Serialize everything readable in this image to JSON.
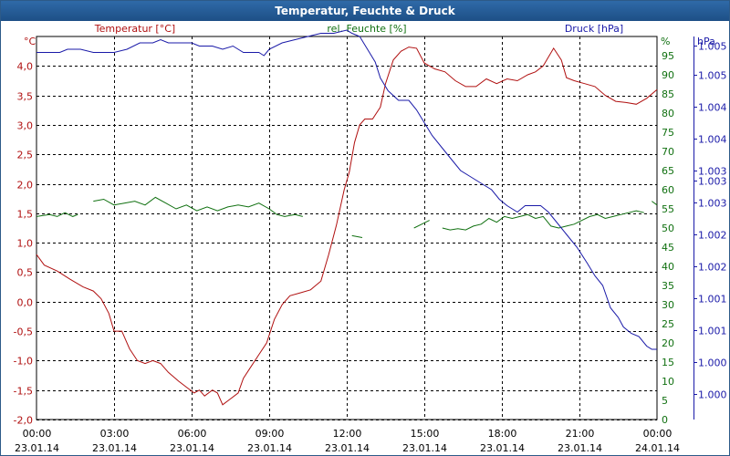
{
  "chart_data": {
    "type": "line",
    "title": "Temperatur, Feuchte & Druck",
    "x_tick_times": [
      "00:00",
      "03:00",
      "06:00",
      "09:00",
      "12:00",
      "15:00",
      "18:00",
      "21:00",
      "00:00"
    ],
    "x_tick_dates": [
      "23.01.14",
      "23.01.14",
      "23.01.14",
      "23.01.14",
      "23.01.14",
      "23.01.14",
      "23.01.14",
      "23.01.14",
      "24.01.14"
    ],
    "xlim": [
      0,
      24
    ],
    "axes": {
      "temperature": {
        "label": "Temperatur [°C]",
        "unit": "°C",
        "color": "#b01010",
        "ylim": [
          -2.0,
          4.5
        ],
        "ticks": [
          -2.0,
          -1.5,
          -1.0,
          -0.5,
          0.0,
          0.5,
          1.0,
          1.5,
          2.0,
          2.5,
          3.0,
          3.5,
          4.0
        ],
        "tick_labels": [
          "-2,0",
          "-1,5",
          "-1,0",
          "-0,5",
          "0,0",
          "0,5",
          "1,0",
          "1,5",
          "2,0",
          "2,5",
          "3,0",
          "3,5",
          "4,0"
        ]
      },
      "humidity": {
        "label": "rel. Feuchte [%]",
        "unit": "%",
        "color": "#107010",
        "ylim": [
          0,
          100
        ],
        "ticks": [
          0,
          5,
          10,
          15,
          20,
          25,
          30,
          35,
          40,
          45,
          50,
          55,
          60,
          65,
          70,
          75,
          80,
          85,
          90,
          95
        ],
        "tick_labels": [
          "0",
          "5",
          "10",
          "15",
          "20",
          "25",
          "30",
          "35",
          "40",
          "45",
          "50",
          "55",
          "60",
          "65",
          "70",
          "75",
          "80",
          "85",
          "90",
          "95"
        ]
      },
      "pressure": {
        "label": "Druck [hPa]",
        "unit": "hPa",
        "color": "#1a1aa8",
        "ylim": [
          999.6,
          1005.6
        ],
        "ticks": [
          1000,
          1000.5,
          1001,
          1001.5,
          1002,
          1002.5,
          1003,
          1003.5,
          1004,
          1004.5,
          1005
        ],
        "tick_labels": [
          "1.000",
          "1.000",
          "1.001",
          "1.001",
          "1.002",
          "1.002",
          "1.003",
          "1.003",
          "1.004",
          "1.004",
          "1.005"
        ],
        "extra_labels": [
          {
            "y": 1005.45,
            "text": "1.005"
          },
          {
            "y": 1003.35,
            "text": "1.003"
          }
        ]
      }
    },
    "series": [
      {
        "name": "Temperatur",
        "axis": "temperature",
        "color": "#b01010",
        "points": [
          [
            0,
            0.8
          ],
          [
            0.3,
            0.62
          ],
          [
            0.8,
            0.52
          ],
          [
            1.3,
            0.38
          ],
          [
            1.8,
            0.25
          ],
          [
            2.2,
            0.18
          ],
          [
            2.5,
            0.05
          ],
          [
            2.8,
            -0.2
          ],
          [
            3.0,
            -0.5
          ],
          [
            3.3,
            -0.5
          ],
          [
            3.6,
            -0.8
          ],
          [
            3.9,
            -1.0
          ],
          [
            4.2,
            -1.05
          ],
          [
            4.5,
            -1.0
          ],
          [
            4.8,
            -1.05
          ],
          [
            5.1,
            -1.2
          ],
          [
            5.5,
            -1.35
          ],
          [
            5.8,
            -1.45
          ],
          [
            6.1,
            -1.55
          ],
          [
            6.3,
            -1.5
          ],
          [
            6.5,
            -1.6
          ],
          [
            6.8,
            -1.5
          ],
          [
            7.0,
            -1.55
          ],
          [
            7.2,
            -1.75
          ],
          [
            7.5,
            -1.65
          ],
          [
            7.8,
            -1.55
          ],
          [
            8.0,
            -1.3
          ],
          [
            8.3,
            -1.1
          ],
          [
            8.6,
            -0.9
          ],
          [
            8.9,
            -0.7
          ],
          [
            9.2,
            -0.3
          ],
          [
            9.5,
            -0.05
          ],
          [
            9.8,
            0.1
          ],
          [
            10.2,
            0.15
          ],
          [
            10.6,
            0.2
          ],
          [
            11.0,
            0.35
          ],
          [
            11.3,
            0.8
          ],
          [
            11.6,
            1.3
          ],
          [
            11.9,
            1.9
          ],
          [
            12.1,
            2.2
          ],
          [
            12.3,
            2.7
          ],
          [
            12.5,
            3.0
          ],
          [
            12.7,
            3.1
          ],
          [
            13.0,
            3.1
          ],
          [
            13.3,
            3.3
          ],
          [
            13.5,
            3.7
          ],
          [
            13.8,
            4.1
          ],
          [
            14.1,
            4.25
          ],
          [
            14.4,
            4.32
          ],
          [
            14.7,
            4.3
          ],
          [
            15.0,
            4.05
          ],
          [
            15.4,
            3.95
          ],
          [
            15.8,
            3.9
          ],
          [
            16.2,
            3.75
          ],
          [
            16.6,
            3.65
          ],
          [
            17.0,
            3.65
          ],
          [
            17.4,
            3.78
          ],
          [
            17.8,
            3.7
          ],
          [
            18.2,
            3.78
          ],
          [
            18.6,
            3.75
          ],
          [
            19.0,
            3.85
          ],
          [
            19.3,
            3.9
          ],
          [
            19.6,
            4.0
          ],
          [
            20.0,
            4.3
          ],
          [
            20.3,
            4.1
          ],
          [
            20.5,
            3.8
          ],
          [
            20.8,
            3.75
          ],
          [
            21.2,
            3.7
          ],
          [
            21.6,
            3.65
          ],
          [
            22.0,
            3.5
          ],
          [
            22.4,
            3.4
          ],
          [
            22.8,
            3.38
          ],
          [
            23.2,
            3.35
          ],
          [
            23.6,
            3.45
          ],
          [
            24.0,
            3.6
          ]
        ]
      },
      {
        "name": "rel. Feuchte",
        "axis": "humidity",
        "color": "#107010",
        "segments": [
          [
            [
              0,
              53
            ],
            [
              0.5,
              53.5
            ],
            [
              0.8,
              53
            ],
            [
              1.1,
              54
            ],
            [
              1.4,
              53
            ],
            [
              1.6,
              53.5
            ]
          ],
          [
            [
              2.2,
              57
            ],
            [
              2.6,
              57.5
            ],
            [
              3.0,
              56
            ],
            [
              3.4,
              56.5
            ],
            [
              3.8,
              57
            ],
            [
              4.2,
              56
            ],
            [
              4.6,
              58
            ],
            [
              5.0,
              56.5
            ],
            [
              5.4,
              55
            ],
            [
              5.8,
              56
            ],
            [
              6.2,
              54.5
            ],
            [
              6.6,
              55.5
            ],
            [
              7.0,
              54.5
            ],
            [
              7.4,
              55.5
            ],
            [
              7.8,
              56
            ],
            [
              8.2,
              55.5
            ],
            [
              8.6,
              56.5
            ],
            [
              9.0,
              55
            ],
            [
              9.3,
              53.5
            ],
            [
              9.6,
              53
            ],
            [
              10.0,
              53.5
            ],
            [
              10.3,
              53
            ]
          ],
          [
            [
              12.2,
              48
            ],
            [
              12.6,
              47.5
            ]
          ],
          [
            [
              14.6,
              50
            ],
            [
              14.9,
              51
            ],
            [
              15.2,
              52
            ]
          ],
          [
            [
              15.7,
              50
            ],
            [
              16.0,
              49.5
            ],
            [
              16.3,
              49.8
            ],
            [
              16.6,
              49.5
            ],
            [
              16.9,
              50.5
            ],
            [
              17.2,
              51
            ],
            [
              17.5,
              52.5
            ],
            [
              17.8,
              51.5
            ],
            [
              18.1,
              53
            ],
            [
              18.4,
              52.5
            ],
            [
              18.7,
              53
            ],
            [
              19.0,
              53.5
            ],
            [
              19.3,
              52.5
            ],
            [
              19.6,
              53
            ],
            [
              19.9,
              50.5
            ],
            [
              20.2,
              50
            ],
            [
              20.5,
              50.5
            ],
            [
              20.8,
              51
            ],
            [
              21.1,
              52
            ],
            [
              21.4,
              53
            ],
            [
              21.7,
              53.5
            ],
            [
              22.0,
              52.5
            ],
            [
              22.3,
              53
            ],
            [
              22.6,
              53.5
            ],
            [
              22.9,
              54
            ],
            [
              23.2,
              54.5
            ],
            [
              23.5,
              54
            ]
          ],
          [
            [
              23.8,
              57
            ],
            [
              24.0,
              56
            ]
          ]
        ]
      },
      {
        "name": "Druck",
        "axis": "pressure",
        "color": "#1a1aa8",
        "points": [
          [
            0,
            1005.35
          ],
          [
            0.9,
            1005.35
          ],
          [
            1.2,
            1005.4
          ],
          [
            1.7,
            1005.4
          ],
          [
            2.2,
            1005.35
          ],
          [
            3.0,
            1005.35
          ],
          [
            3.5,
            1005.4
          ],
          [
            4.0,
            1005.5
          ],
          [
            4.5,
            1005.5
          ],
          [
            4.8,
            1005.55
          ],
          [
            5.1,
            1005.5
          ],
          [
            6.0,
            1005.5
          ],
          [
            6.3,
            1005.45
          ],
          [
            6.8,
            1005.45
          ],
          [
            7.2,
            1005.4
          ],
          [
            7.6,
            1005.45
          ],
          [
            8.0,
            1005.35
          ],
          [
            8.6,
            1005.35
          ],
          [
            8.8,
            1005.3
          ],
          [
            9.0,
            1005.4
          ],
          [
            9.5,
            1005.5
          ],
          [
            10.0,
            1005.55
          ],
          [
            10.5,
            1005.6
          ],
          [
            11.0,
            1005.65
          ],
          [
            11.5,
            1005.65
          ],
          [
            12.0,
            1005.7
          ],
          [
            12.2,
            1005.65
          ],
          [
            12.5,
            1005.6
          ],
          [
            12.8,
            1005.4
          ],
          [
            13.1,
            1005.2
          ],
          [
            13.3,
            1004.95
          ],
          [
            13.6,
            1004.75
          ],
          [
            14.0,
            1004.6
          ],
          [
            14.4,
            1004.6
          ],
          [
            14.7,
            1004.45
          ],
          [
            15.0,
            1004.25
          ],
          [
            15.3,
            1004.05
          ],
          [
            15.7,
            1003.85
          ],
          [
            16.0,
            1003.7
          ],
          [
            16.4,
            1003.5
          ],
          [
            16.8,
            1003.4
          ],
          [
            17.2,
            1003.3
          ],
          [
            17.6,
            1003.2
          ],
          [
            17.9,
            1003.05
          ],
          [
            18.2,
            1002.95
          ],
          [
            18.6,
            1002.85
          ],
          [
            18.9,
            1002.95
          ],
          [
            19.5,
            1002.95
          ],
          [
            19.8,
            1002.85
          ],
          [
            20.1,
            1002.7
          ],
          [
            20.5,
            1002.5
          ],
          [
            20.9,
            1002.3
          ],
          [
            21.3,
            1002.05
          ],
          [
            21.6,
            1001.85
          ],
          [
            21.9,
            1001.7
          ],
          [
            22.2,
            1001.35
          ],
          [
            22.5,
            1001.2
          ],
          [
            22.7,
            1001.05
          ],
          [
            23.0,
            1000.95
          ],
          [
            23.3,
            1000.9
          ],
          [
            23.6,
            1000.75
          ],
          [
            23.8,
            1000.7
          ],
          [
            24.0,
            1000.7
          ]
        ]
      }
    ]
  }
}
